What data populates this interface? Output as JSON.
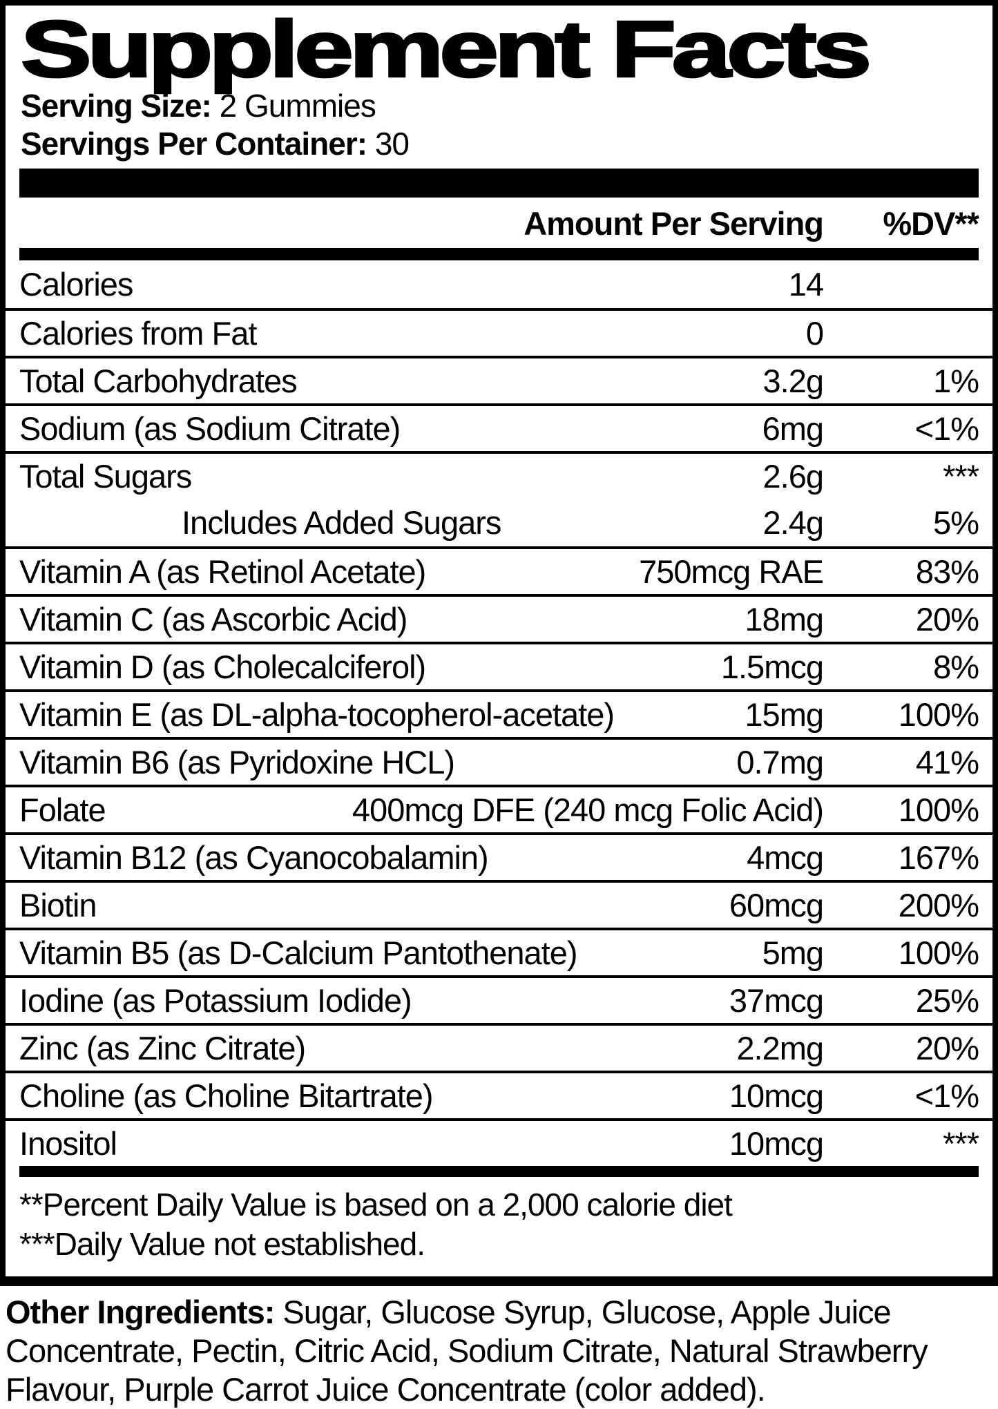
{
  "title": "Supplement Facts",
  "serving_info": {
    "serving_size_label": "Serving Size:",
    "serving_size_value": "2 Gummies",
    "servings_per_container_label": "Servings Per Container:",
    "servings_per_container_value": "30"
  },
  "table": {
    "header": {
      "amount": "Amount Per Serving",
      "dv": "%DV**"
    },
    "rows": [
      {
        "name": "Calories",
        "amount": "14",
        "dv": "",
        "indent": false
      },
      {
        "name": "Calories from Fat",
        "amount": "0",
        "dv": "",
        "indent": false
      },
      {
        "name": "Total Carbohydrates",
        "amount": "3.2g",
        "dv": "1%",
        "indent": false
      },
      {
        "name": "Sodium (as Sodium Citrate)",
        "amount": "6mg",
        "dv": "<1%",
        "indent": false
      },
      {
        "name": "Total Sugars",
        "amount": "2.6g",
        "dv": "***",
        "indent": false
      },
      {
        "name": "Includes Added Sugars",
        "amount": "2.4g",
        "dv": "5%",
        "indent": true
      },
      {
        "name": "Vitamin A (as Retinol Acetate)",
        "amount": "750mcg RAE",
        "dv": "83%",
        "indent": false
      },
      {
        "name": "Vitamin C (as Ascorbic Acid)",
        "amount": "18mg",
        "dv": "20%",
        "indent": false
      },
      {
        "name": "Vitamin D (as Cholecalciferol)",
        "amount": "1.5mcg",
        "dv": "8%",
        "indent": false
      },
      {
        "name": "Vitamin E (as DL-alpha-tocopherol-acetate)",
        "amount": "15mg",
        "dv": "100%",
        "indent": false
      },
      {
        "name": "Vitamin B6 (as Pyridoxine HCL)",
        "amount": "0.7mg",
        "dv": "41%",
        "indent": false
      },
      {
        "name": "Folate",
        "amount": "400mcg DFE (240 mcg Folic Acid)",
        "dv": "100%",
        "indent": false
      },
      {
        "name": "Vitamin B12 (as Cyanocobalamin)",
        "amount": "4mcg",
        "dv": "167%",
        "indent": false
      },
      {
        "name": "Biotin",
        "amount": "60mcg",
        "dv": "200%",
        "indent": false
      },
      {
        "name": "Vitamin B5 (as D-Calcium Pantothenate)",
        "amount": "5mg",
        "dv": "100%",
        "indent": false
      },
      {
        "name": "Iodine (as Potassium Iodide)",
        "amount": "37mcg",
        "dv": "25%",
        "indent": false
      },
      {
        "name": "Zinc (as Zinc Citrate)",
        "amount": "2.2mg",
        "dv": "20%",
        "indent": false
      },
      {
        "name": "Choline (as Choline Bitartrate)",
        "amount": "10mcg",
        "dv": "<1%",
        "indent": false
      },
      {
        "name": "Inositol",
        "amount": "10mcg",
        "dv": "***",
        "indent": false
      }
    ]
  },
  "footnotes": [
    "**Percent Daily Value is based on a 2,000 calorie diet",
    "***Daily Value not established."
  ],
  "other_ingredients": {
    "label": "Other Ingredients:",
    "text": " Sugar, Glucose Syrup, Glucose, Apple Juice Concentrate, Pectin, Citric Acid, Sodium Citrate, Natural Strawberry Flavour, Purple Carrot Juice Concentrate (color added)."
  },
  "colors": {
    "ink": "#000000",
    "paper": "#ffffff"
  }
}
